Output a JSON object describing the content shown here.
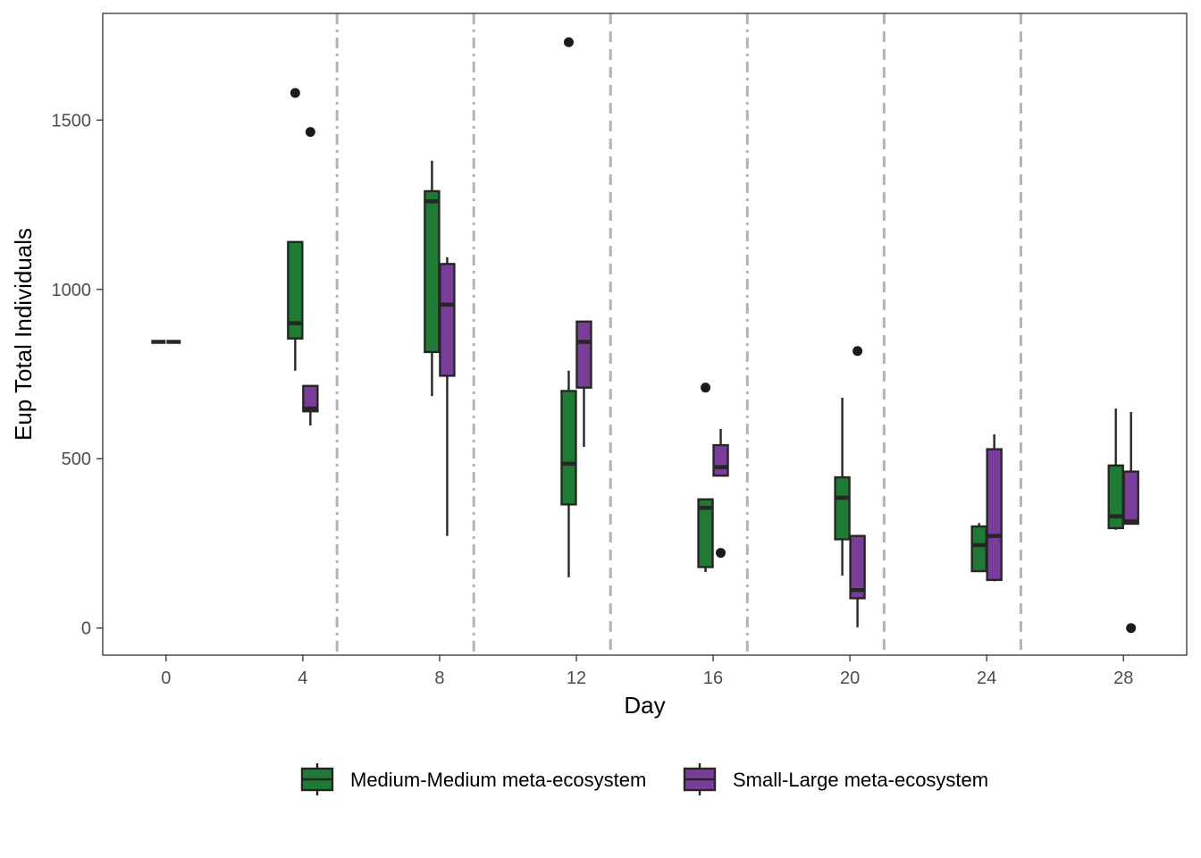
{
  "chart_data": {
    "type": "boxplot",
    "title": "",
    "xlabel": "Day",
    "ylabel": "Eup Total Individuals",
    "xlim": [
      -1.85,
      29.85
    ],
    "ylim": [
      -80,
      1815
    ],
    "x_ticks": [
      0,
      4,
      8,
      12,
      16,
      20,
      24,
      28
    ],
    "x_tick_labels": [
      "0",
      "4",
      "8",
      "12",
      "16",
      "20",
      "24",
      "28"
    ],
    "y_ticks": [
      0,
      500,
      1000,
      1500
    ],
    "y_tick_labels": [
      "0",
      "500",
      "1000",
      "1500"
    ],
    "grid": false,
    "vertical_lines": [
      {
        "x": 5,
        "style": "dotdash"
      },
      {
        "x": 9,
        "style": "dotdash"
      },
      {
        "x": 13,
        "style": "dashed"
      },
      {
        "x": 17,
        "style": "dotdash"
      },
      {
        "x": 21,
        "style": "dashed"
      },
      {
        "x": 25,
        "style": "dashed"
      }
    ],
    "legend_position": "bottom",
    "series": [
      {
        "name": "Medium-Medium meta-ecosystem",
        "color": "#1f7a34",
        "boxes": [
          {
            "day": 0,
            "whisker_low": 845,
            "q1": 845,
            "median": 845,
            "q3": 845,
            "whisker_high": 845,
            "outliers": []
          },
          {
            "day": 4,
            "whisker_low": 760,
            "q1": 855,
            "median": 900,
            "q3": 1140,
            "whisker_high": 1140,
            "outliers": [
              1580
            ]
          },
          {
            "day": 8,
            "whisker_low": 685,
            "q1": 815,
            "median": 1260,
            "q3": 1290,
            "whisker_high": 1380,
            "outliers": []
          },
          {
            "day": 12,
            "whisker_low": 150,
            "q1": 365,
            "median": 485,
            "q3": 700,
            "whisker_high": 760,
            "outliers": [
              1730
            ]
          },
          {
            "day": 16,
            "whisker_low": 165,
            "q1": 180,
            "median": 355,
            "q3": 380,
            "whisker_high": 380,
            "outliers": [
              710
            ]
          },
          {
            "day": 20,
            "whisker_low": 155,
            "q1": 262,
            "median": 385,
            "q3": 445,
            "whisker_high": 680,
            "outliers": []
          },
          {
            "day": 24,
            "whisker_low": 165,
            "q1": 168,
            "median": 245,
            "q3": 300,
            "whisker_high": 310,
            "outliers": []
          },
          {
            "day": 28,
            "whisker_low": 290,
            "q1": 295,
            "median": 330,
            "q3": 480,
            "whisker_high": 648,
            "outliers": []
          }
        ]
      },
      {
        "name": "Small-Large meta-ecosystem",
        "color": "#7a3d99",
        "boxes": [
          {
            "day": 0,
            "whisker_low": 845,
            "q1": 845,
            "median": 845,
            "q3": 845,
            "whisker_high": 845,
            "outliers": []
          },
          {
            "day": 4,
            "whisker_low": 598,
            "q1": 640,
            "median": 648,
            "q3": 715,
            "whisker_high": 715,
            "outliers": [
              1465
            ]
          },
          {
            "day": 8,
            "whisker_low": 272,
            "q1": 745,
            "median": 955,
            "q3": 1075,
            "whisker_high": 1095,
            "outliers": []
          },
          {
            "day": 12,
            "whisker_low": 535,
            "q1": 710,
            "median": 845,
            "q3": 905,
            "whisker_high": 905,
            "outliers": []
          },
          {
            "day": 16,
            "whisker_low": 450,
            "q1": 450,
            "median": 475,
            "q3": 540,
            "whisker_high": 588,
            "outliers": [
              222
            ]
          },
          {
            "day": 20,
            "whisker_low": 2,
            "q1": 88,
            "median": 112,
            "q3": 272,
            "whisker_high": 272,
            "outliers": [
              818
            ]
          },
          {
            "day": 24,
            "whisker_low": 138,
            "q1": 142,
            "median": 272,
            "q3": 528,
            "whisker_high": 572,
            "outliers": []
          },
          {
            "day": 28,
            "whisker_low": 308,
            "q1": 308,
            "median": 315,
            "q3": 462,
            "whisker_high": 638,
            "outliers": [
              0
            ]
          }
        ]
      }
    ]
  }
}
